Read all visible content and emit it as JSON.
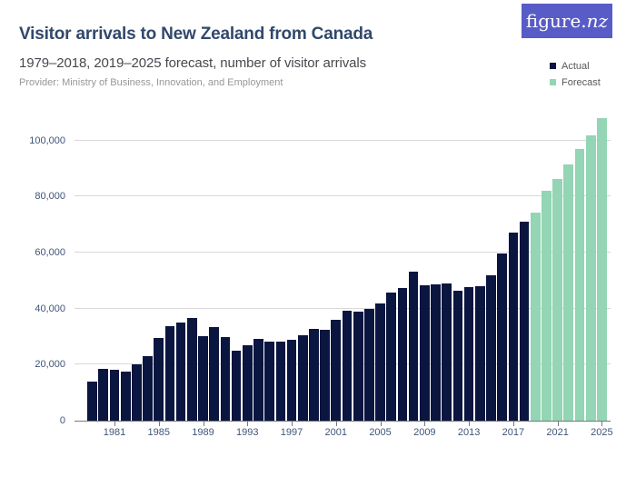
{
  "header": {
    "title": "Visitor arrivals to New Zealand from Canada",
    "subtitle": "1979–2018, 2019–2025 forecast, number of visitor arrivals",
    "provider": "Provider: Ministry of Business, Innovation, and Employment"
  },
  "logo": {
    "text_main": "figure.",
    "text_accent": "nz",
    "bg_color": "#585cc7",
    "text_color": "#ffffff"
  },
  "legend": {
    "items": [
      {
        "label": "Actual",
        "color": "#0a1540"
      },
      {
        "label": "Forecast",
        "color": "#93d5b4"
      }
    ]
  },
  "chart_data": {
    "type": "bar",
    "title": "Visitor arrivals to New Zealand from Canada",
    "xlabel": "",
    "ylabel": "number of visitor arrivals",
    "grid": true,
    "legend_position": "top-right",
    "ylim": [
      0,
      110000
    ],
    "yticks": [
      0,
      20000,
      40000,
      60000,
      80000,
      100000
    ],
    "ytick_labels": [
      "0",
      "20,000",
      "40,000",
      "60,000",
      "80,000",
      "100,000"
    ],
    "xtick_years": [
      1981,
      1985,
      1989,
      1993,
      1997,
      2001,
      2005,
      2009,
      2013,
      2017,
      2021,
      2025
    ],
    "categories": [
      1979,
      1980,
      1981,
      1982,
      1983,
      1984,
      1985,
      1986,
      1987,
      1988,
      1989,
      1990,
      1991,
      1992,
      1993,
      1994,
      1995,
      1996,
      1997,
      1998,
      1999,
      2000,
      2001,
      2002,
      2003,
      2004,
      2005,
      2006,
      2007,
      2008,
      2009,
      2010,
      2011,
      2012,
      2013,
      2014,
      2015,
      2016,
      2017,
      2018,
      2019,
      2020,
      2021,
      2022,
      2023,
      2024,
      2025
    ],
    "series": [
      {
        "name": "Actual",
        "color": "#0a1540",
        "years": [
          1979,
          1980,
          1981,
          1982,
          1983,
          1984,
          1985,
          1986,
          1987,
          1988,
          1989,
          1990,
          1991,
          1992,
          1993,
          1994,
          1995,
          1996,
          1997,
          1998,
          1999,
          2000,
          2001,
          2002,
          2003,
          2004,
          2005,
          2006,
          2007,
          2008,
          2009,
          2010,
          2011,
          2012,
          2013,
          2014,
          2015,
          2016,
          2017,
          2018
        ],
        "values": [
          14000,
          18400,
          18000,
          17500,
          20200,
          23000,
          29500,
          33700,
          34900,
          36500,
          30300,
          33500,
          29700,
          25100,
          27000,
          29200,
          28300,
          28100,
          29000,
          30400,
          32600,
          32300,
          35900,
          39100,
          38900,
          40000,
          41700,
          45600,
          47400,
          53000,
          48400,
          48700,
          48900,
          46200,
          47500,
          48100,
          52000,
          59500,
          67100,
          71000
        ]
      },
      {
        "name": "Forecast",
        "color": "#93d5b4",
        "years": [
          2019,
          2020,
          2021,
          2022,
          2023,
          2024,
          2025
        ],
        "values": [
          74300,
          81900,
          86100,
          91300,
          96900,
          101800,
          108100
        ]
      }
    ]
  }
}
